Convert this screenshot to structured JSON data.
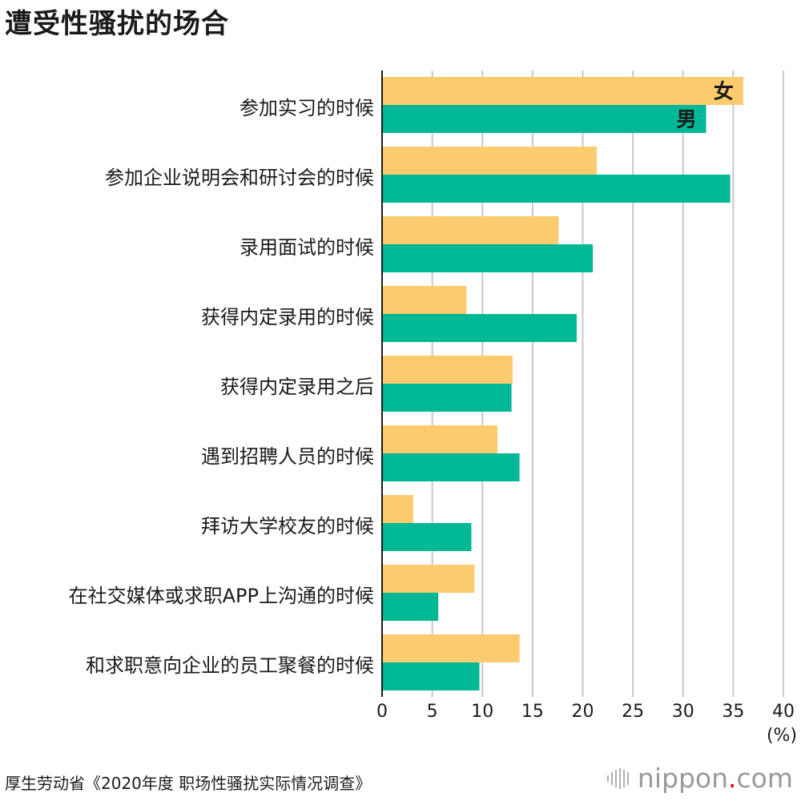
{
  "title": "遭受性骚扰的场合",
  "source": "厚生劳动省《2020年度 职场性骚扰实际情况调查》",
  "logo": {
    "text_pre": "nippon",
    "text_dot": ".",
    "text_post": "com",
    "icon": "nippon-logo-mark"
  },
  "colors": {
    "female": "#fccb6e",
    "male": "#00b895",
    "grid": "#c8c8c8",
    "axis": "#1a1a1a"
  },
  "chart_data": {
    "type": "bar",
    "orientation": "horizontal",
    "title": "遭受性骚扰的场合",
    "categories": [
      "参加实习的时候",
      "参加企业说明会和研讨会的时候",
      "录用面试的时候",
      "获得内定录用的时候",
      "获得内定录用之后",
      "遇到招聘人员的时候",
      "拜访大学校友的时候",
      "在社交媒体或求职APP上沟通的时候",
      "和求职意向企业的员工聚餐的时候"
    ],
    "series": [
      {
        "name": "女",
        "color": "#fccb6e",
        "values": [
          36.0,
          21.4,
          17.6,
          8.4,
          13.0,
          11.5,
          3.1,
          9.2,
          13.7
        ]
      },
      {
        "name": "男",
        "color": "#00b895",
        "values": [
          32.3,
          34.7,
          21.0,
          19.4,
          12.9,
          13.7,
          8.9,
          5.6,
          9.7
        ]
      }
    ],
    "xlim": [
      0,
      40
    ],
    "xticks": [
      "0",
      "5",
      "10",
      "15",
      "20",
      "25",
      "30",
      "35",
      "40"
    ],
    "xunit": "(%)",
    "grid": true,
    "legend": "inline labels on first category bars"
  }
}
